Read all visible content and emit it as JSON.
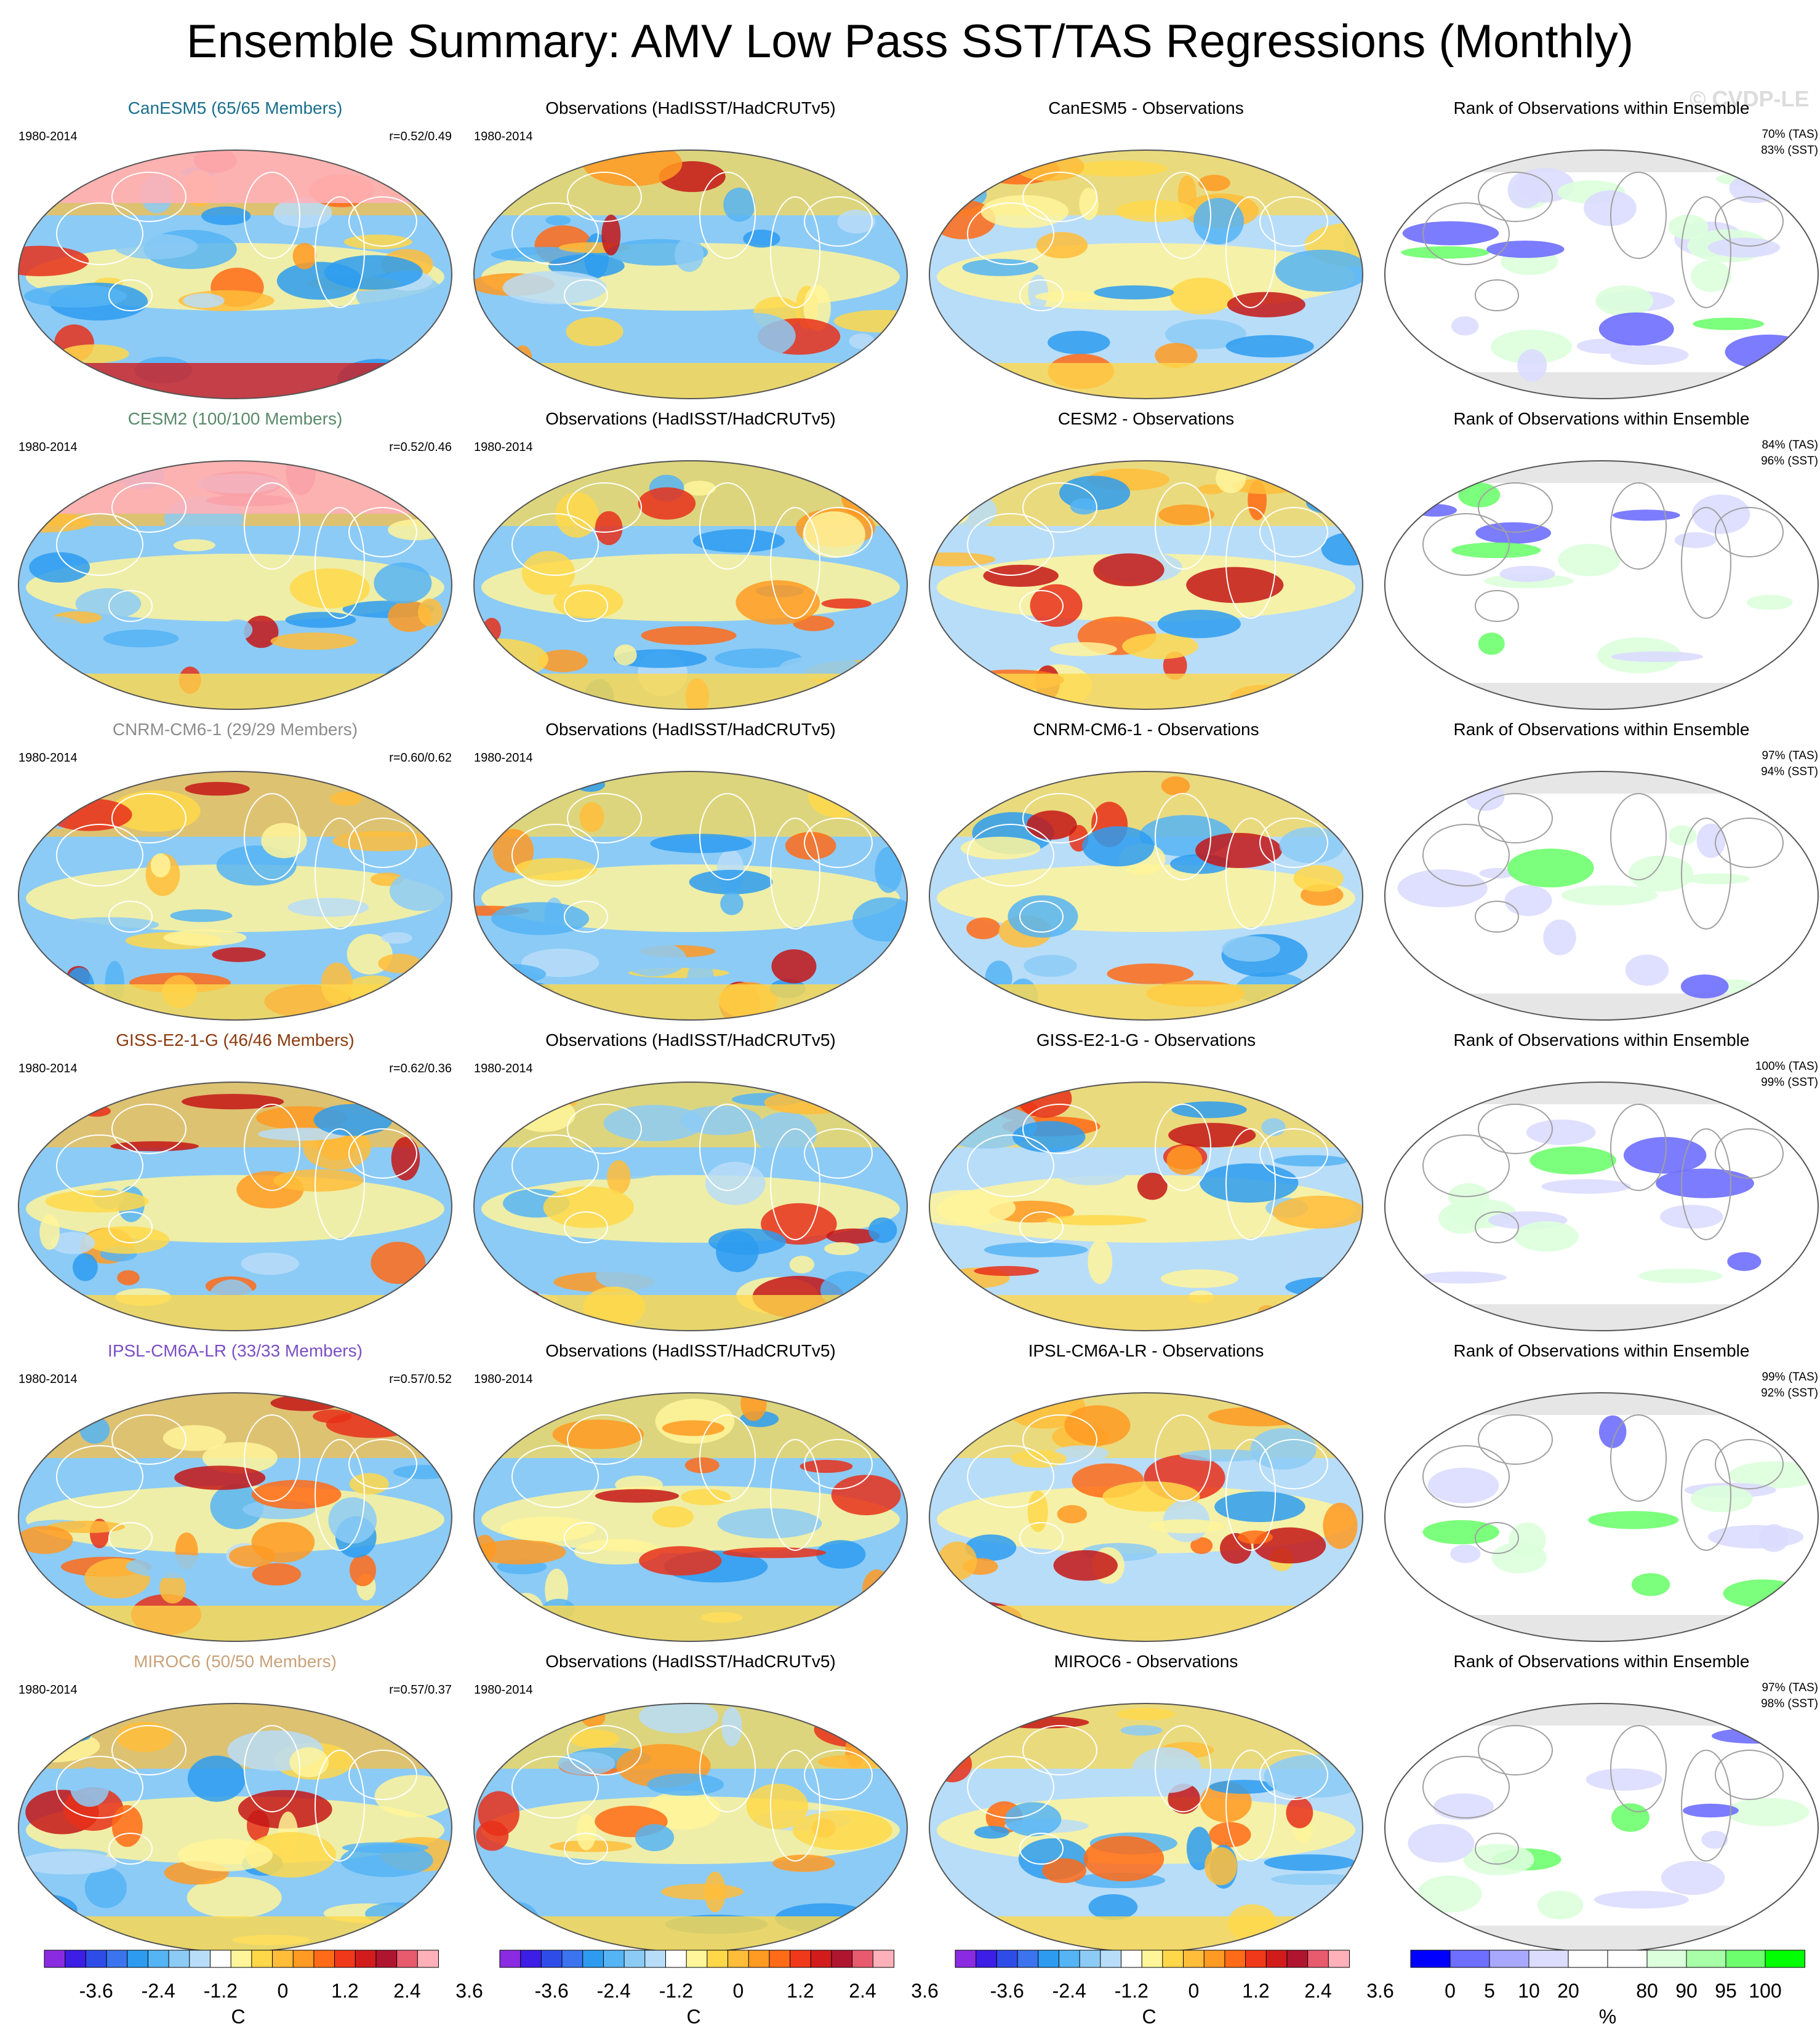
{
  "title": "Ensemble Summary: AMV Low Pass SST/TAS Regressions (Monthly)",
  "watermark": "© CVDP-LE",
  "column_titles": {
    "observations": "Observations (HadISST/HadCRUTv5)",
    "rank": "Rank of Observations within Ensemble"
  },
  "period": "1980-2014",
  "rows": [
    {
      "model_title": "CanESM5 (65/65 Members)",
      "model_color": "#1a6f8c",
      "corr": "r=0.52/0.49",
      "diff_title": "CanESM5 - Observations",
      "rank_tas": "70% (TAS)",
      "rank_sst": "83% (SST)"
    },
    {
      "model_title": "CESM2 (100/100 Members)",
      "model_color": "#5a8a6a",
      "corr": "r=0.52/0.46",
      "diff_title": "CESM2 - Observations",
      "rank_tas": "84% (TAS)",
      "rank_sst": "96% (SST)"
    },
    {
      "model_title": "CNRM-CM6-1 (29/29 Members)",
      "model_color": "#8c8c8c",
      "corr": "r=0.60/0.62",
      "diff_title": "CNRM-CM6-1 - Observations",
      "rank_tas": "97% (TAS)",
      "rank_sst": "94% (SST)"
    },
    {
      "model_title": "GISS-E2-1-G (46/46 Members)",
      "model_color": "#8b3a0e",
      "corr": "r=0.62/0.36",
      "diff_title": "GISS-E2-1-G - Observations",
      "rank_tas": "100% (TAS)",
      "rank_sst": "99% (SST)"
    },
    {
      "model_title": "IPSL-CM6A-LR (33/33 Members)",
      "model_color": "#7b4fc4",
      "corr": "r=0.57/0.52",
      "diff_title": "IPSL-CM6A-LR - Observations",
      "rank_tas": "99% (TAS)",
      "rank_sst": "92% (SST)"
    },
    {
      "model_title": "MIROC6 (50/50 Members)",
      "model_color": "#c9a27a",
      "corr": "r=0.57/0.37",
      "diff_title": "MIROC6 - Observations",
      "rank_tas": "97% (TAS)",
      "rank_sst": "98% (SST)"
    }
  ],
  "colorbars": {
    "regression": {
      "ticks": [
        "-3.6",
        "-2.4",
        "-1.2",
        "0",
        "1.2",
        "2.4",
        "3.6"
      ],
      "unit": "C",
      "colors": [
        "#8a2be2",
        "#3c1ee6",
        "#2e4de8",
        "#3b74ee",
        "#2d9cf0",
        "#55b4f4",
        "#8ccbf6",
        "#b8ddf8",
        "#ffffff",
        "#fff59a",
        "#ffd84a",
        "#ffbd3a",
        "#ff9a22",
        "#ff6b16",
        "#f0391a",
        "#d21c1c",
        "#b01530",
        "#e85a6e",
        "#ffb0b8"
      ]
    },
    "rank": {
      "ticks": [
        "0",
        "5",
        "10",
        "20",
        "80",
        "90",
        "95",
        "100"
      ],
      "unit": "%",
      "colors": [
        "#0000ff",
        "#6e6eff",
        "#a8a8ff",
        "#dcdcff",
        "#ffffff",
        "#ffffff",
        "#dcffdc",
        "#a8ffa8",
        "#6eff6e",
        "#00ff00"
      ]
    }
  }
}
